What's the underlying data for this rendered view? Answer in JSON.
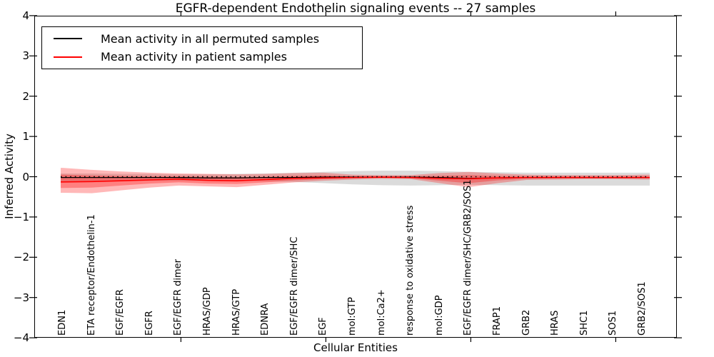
{
  "title": "EGFR-dependent Endothelin signaling events -- 27 samples",
  "axes": {
    "ylabel": "Inferred Activity",
    "xlabel": "Cellular Entities",
    "ytick_labels": [
      "4",
      "3",
      "2",
      "1",
      "0",
      "−1",
      "−2",
      "−3",
      "−4"
    ]
  },
  "legend": {
    "items": [
      {
        "label": "Mean activity in all permuted samples",
        "color": "#000000"
      },
      {
        "label": "Mean activity in patient samples",
        "color": "#ff0000"
      }
    ]
  },
  "chart_data": {
    "type": "line",
    "title": "EGFR-dependent Endothelin signaling events -- 27 samples",
    "xlabel": "Cellular Entities",
    "ylabel": "Inferred Activity",
    "ylim": [
      -4,
      4
    ],
    "yticks": [
      4,
      3,
      2,
      1,
      0,
      -1,
      -2,
      -3,
      -4
    ],
    "grid": false,
    "legend_position": "upper left",
    "zero_reference_line": 0,
    "categories": [
      "EDN1",
      "ETA receptor/Endothelin-1",
      "EGF/EGFR",
      "EGFR",
      "EGF/EGFR dimer",
      "HRAS/GDP",
      "HRAS/GTP",
      "EDNRA",
      "EGF/EGFR dimer/SHC",
      "EGF",
      "mol:GTP",
      "mol:Ca2+",
      "response to oxidative stress",
      "mol:GDP",
      "EGF/EGFR dimer/SHC/GRB2/SOS1",
      "FRAP1",
      "GRB2",
      "HRAS",
      "SHC1",
      "SOS1",
      "GRB2/SOS1"
    ],
    "series": [
      {
        "name": "Mean activity in all permuted samples",
        "color": "#000000",
        "width": 1.3,
        "values": [
          -0.02,
          -0.02,
          -0.02,
          -0.02,
          -0.02,
          -0.03,
          -0.03,
          -0.02,
          -0.02,
          -0.01,
          -0.01,
          -0.01,
          -0.01,
          -0.02,
          -0.04,
          -0.03,
          -0.02,
          -0.02,
          -0.02,
          -0.02,
          -0.02
        ]
      },
      {
        "name": "Mean activity in patient samples",
        "color": "#ff0000",
        "width": 1.6,
        "values": [
          -0.13,
          -0.12,
          -0.1,
          -0.08,
          -0.06,
          -0.09,
          -0.1,
          -0.07,
          -0.04,
          -0.03,
          -0.02,
          -0.01,
          -0.02,
          -0.04,
          -0.05,
          -0.03,
          -0.02,
          -0.02,
          -0.02,
          -0.02,
          -0.02
        ]
      }
    ],
    "bands": [
      {
        "name": "permuted-samples-std-band",
        "color": "#999999",
        "opacity": 0.35,
        "upper": [
          0.08,
          0.08,
          0.07,
          0.07,
          0.06,
          0.06,
          0.07,
          0.08,
          0.1,
          0.12,
          0.14,
          0.15,
          0.15,
          0.14,
          0.12,
          0.11,
          0.1,
          0.1,
          0.1,
          0.1,
          0.1
        ],
        "lower": [
          -0.12,
          -0.12,
          -0.11,
          -0.1,
          -0.1,
          -0.1,
          -0.1,
          -0.11,
          -0.13,
          -0.16,
          -0.19,
          -0.21,
          -0.22,
          -0.21,
          -0.2,
          -0.21,
          -0.22,
          -0.22,
          -0.22,
          -0.22,
          -0.22
        ]
      },
      {
        "name": "patient-samples-std-band-outer",
        "color": "#ff0000",
        "opacity": 0.28,
        "upper": [
          0.22,
          0.17,
          0.13,
          0.1,
          0.08,
          0.07,
          0.06,
          0.07,
          0.09,
          0.1,
          0.05,
          0.04,
          0.04,
          0.09,
          0.12,
          0.08,
          0.05,
          0.04,
          0.04,
          0.04,
          0.05
        ],
        "lower": [
          -0.4,
          -0.41,
          -0.34,
          -0.27,
          -0.22,
          -0.24,
          -0.26,
          -0.2,
          -0.14,
          -0.1,
          -0.07,
          -0.05,
          -0.06,
          -0.16,
          -0.26,
          -0.16,
          -0.08,
          -0.07,
          -0.06,
          -0.06,
          -0.07
        ]
      },
      {
        "name": "patient-samples-std-band-inner",
        "color": "#ff0000",
        "opacity": 0.3,
        "upper": [
          0.05,
          0.03,
          0.02,
          0.01,
          0.01,
          0.0,
          -0.01,
          0.0,
          0.02,
          0.03,
          0.01,
          0.01,
          0.01,
          0.02,
          0.04,
          0.02,
          0.01,
          0.01,
          0.01,
          0.01,
          0.01
        ],
        "lower": [
          -0.28,
          -0.27,
          -0.22,
          -0.17,
          -0.14,
          -0.17,
          -0.18,
          -0.14,
          -0.09,
          -0.06,
          -0.04,
          -0.03,
          -0.04,
          -0.1,
          -0.16,
          -0.09,
          -0.05,
          -0.04,
          -0.04,
          -0.04,
          -0.04
        ]
      }
    ]
  }
}
